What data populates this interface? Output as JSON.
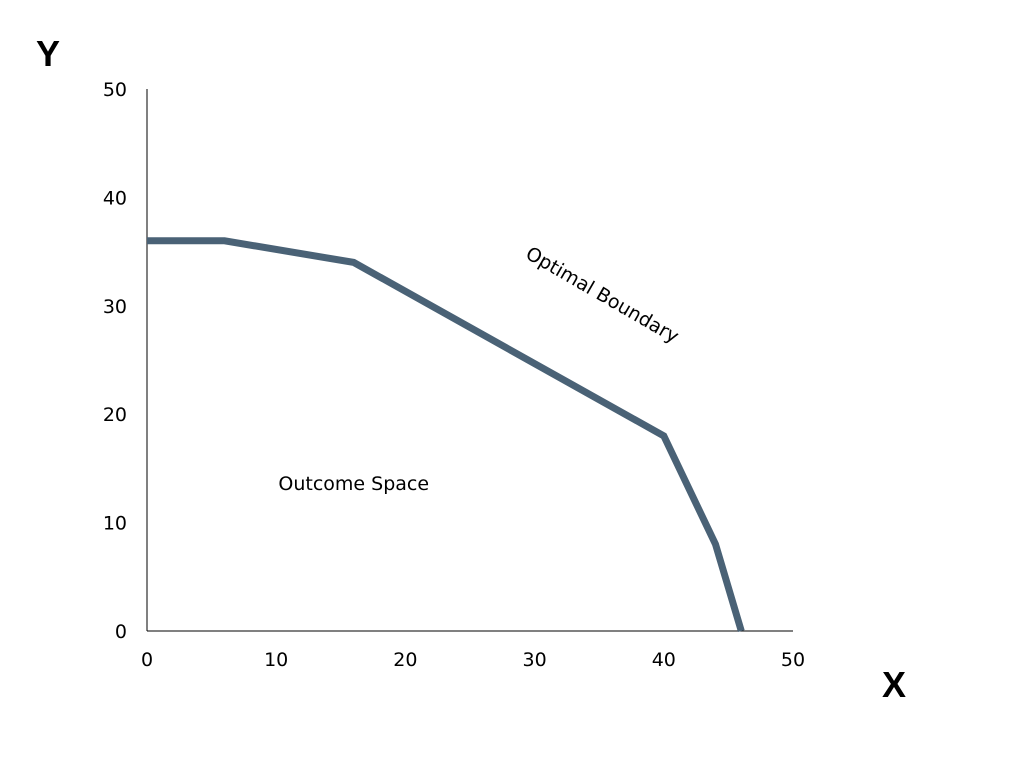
{
  "chart_data": {
    "type": "line",
    "title": "",
    "xlabel": "X",
    "ylabel": "Y",
    "xlim": [
      0,
      50
    ],
    "ylim": [
      0,
      50
    ],
    "xticks": [
      "0",
      "10",
      "20",
      "30",
      "40",
      "50"
    ],
    "yticks": [
      "0",
      "10",
      "20",
      "30",
      "40",
      "50"
    ],
    "grid": false,
    "series": [
      {
        "x": [
          0,
          6,
          16,
          40,
          44,
          46
        ],
        "y": [
          36,
          36,
          34,
          18,
          8,
          0
        ],
        "color": "#4a6276"
      }
    ],
    "annotations": [
      {
        "text": "Optimal Boundary",
        "x": 35,
        "y": 30.5,
        "rotation": 30
      },
      {
        "text": "Outcome Space",
        "x": 16,
        "y": 13
      }
    ]
  }
}
